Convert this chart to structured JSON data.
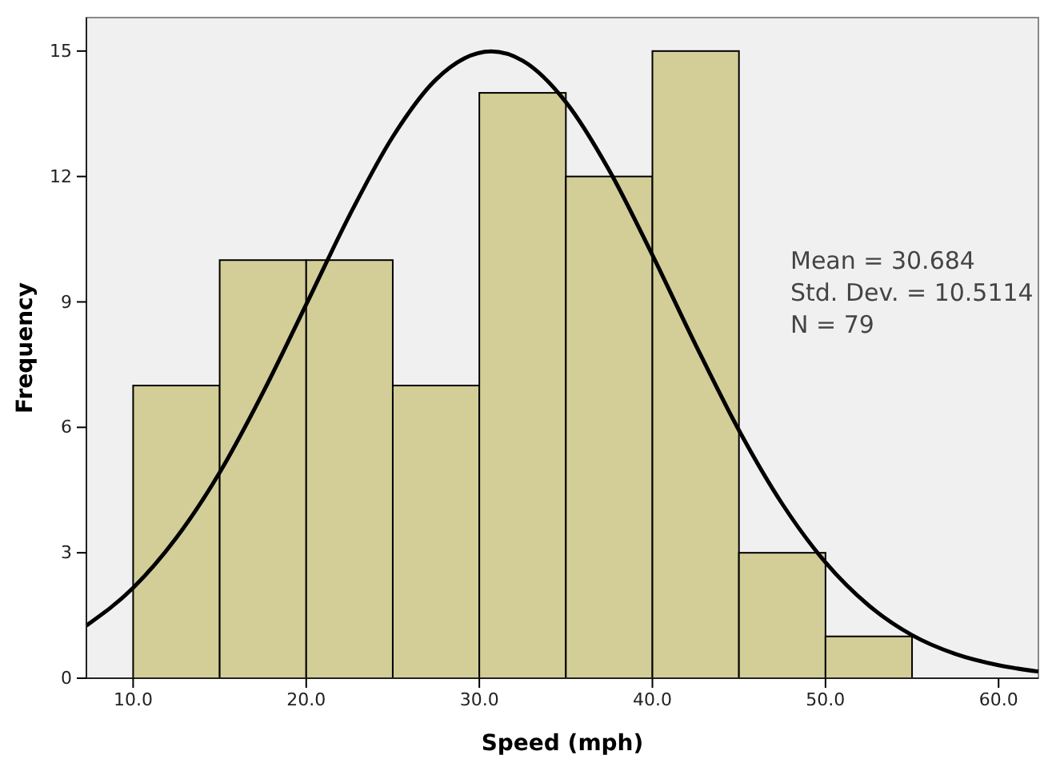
{
  "chart_data": {
    "type": "histogram",
    "xlabel": "Speed (mph)",
    "ylabel": "Frequency",
    "xlim": [
      7.3,
      62.3
    ],
    "xticks": [
      {
        "value": 10,
        "label": "10.0"
      },
      {
        "value": 20,
        "label": "20.0"
      },
      {
        "value": 30,
        "label": "30.0"
      },
      {
        "value": 40,
        "label": "40.0"
      },
      {
        "value": 50,
        "label": "50.0"
      },
      {
        "value": 60,
        "label": "60.0"
      }
    ],
    "ylim": [
      0,
      15.8
    ],
    "yticks": [
      0,
      3,
      6,
      9,
      12,
      15
    ],
    "series": [
      {
        "bins": [
          10,
          15,
          20,
          25,
          30,
          35,
          40,
          45,
          50,
          55
        ],
        "values": [
          7,
          10,
          10,
          7,
          14,
          12,
          15,
          3,
          1
        ],
        "color": "#d3ce97"
      },
      {
        "type": "line",
        "color": "#000000",
        "x": [
          7.3,
          10,
          12.5,
          15,
          17.5,
          20,
          22.5,
          25,
          27.5,
          30.684,
          32.5,
          35,
          37.5,
          40,
          42.5,
          45,
          47.5,
          50,
          52.5,
          55,
          57.5,
          60,
          62.3
        ],
        "values": [
          1.26,
          2.16,
          3.36,
          4.92,
          6.83,
          8.94,
          11.07,
          12.95,
          14.32,
          14.99,
          14.77,
          13.78,
          12.15,
          10.12,
          7.97,
          5.93,
          4.17,
          2.77,
          1.74,
          1.03,
          0.58,
          0.31,
          0.16
        ]
      }
    ],
    "annotations": [
      "Mean = 30.684",
      "Std. Dev. = 10.5114",
      "N = 79"
    ]
  }
}
